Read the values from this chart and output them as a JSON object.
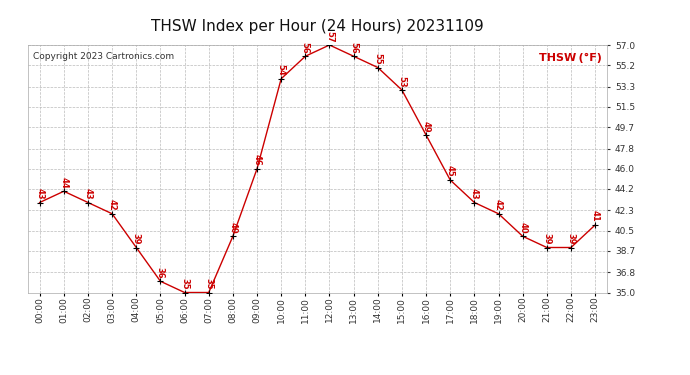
{
  "title": "THSW Index per Hour (24 Hours) 20231109",
  "copyright": "Copyright 2023 Cartronics.com",
  "legend_label": "THSW (°F)",
  "x_labels": [
    "00:00",
    "01:00",
    "02:00",
    "03:00",
    "04:00",
    "05:00",
    "06:00",
    "07:00",
    "08:00",
    "09:00",
    "10:00",
    "11:00",
    "12:00",
    "13:00",
    "14:00",
    "15:00",
    "16:00",
    "17:00",
    "18:00",
    "19:00",
    "20:00",
    "21:00",
    "22:00",
    "23:00"
  ],
  "hours": [
    0,
    1,
    2,
    3,
    4,
    5,
    6,
    7,
    8,
    9,
    10,
    11,
    12,
    13,
    14,
    15,
    16,
    17,
    18,
    19,
    20,
    21,
    22,
    23
  ],
  "values": [
    43,
    44,
    43,
    42,
    39,
    36,
    35,
    35,
    40,
    46,
    54,
    56,
    57,
    56,
    55,
    53,
    49,
    45,
    43,
    42,
    40,
    39,
    39,
    41
  ],
  "point_labels": [
    "43",
    "44",
    "43",
    "42",
    "39",
    "36",
    "35",
    "35",
    "40",
    "46",
    "54",
    "56",
    "57",
    "56",
    "55",
    "53",
    "49",
    "45",
    "43",
    "42",
    "40",
    "39",
    "39",
    "41"
  ],
  "line_color": "#cc0000",
  "point_color": "#000000",
  "label_color": "#cc0000",
  "grid_color": "#bbbbbb",
  "background_color": "#ffffff",
  "title_fontsize": 11,
  "copyright_fontsize": 6.5,
  "legend_fontsize": 8,
  "label_fontsize": 6,
  "tick_fontsize": 6.5,
  "ylim": [
    35.0,
    57.0
  ],
  "yticks": [
    35.0,
    36.8,
    38.7,
    40.5,
    42.3,
    44.2,
    46.0,
    47.8,
    49.7,
    51.5,
    53.3,
    55.2,
    57.0
  ]
}
